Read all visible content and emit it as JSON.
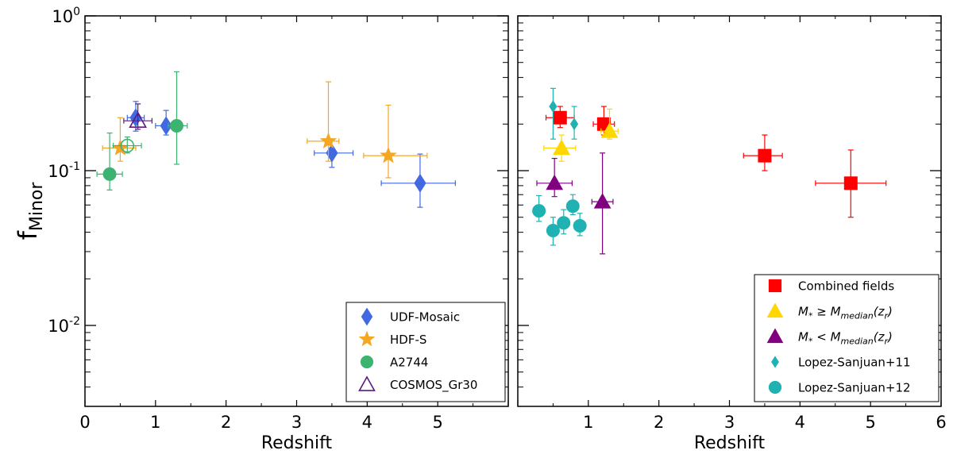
{
  "chart_data": [
    {
      "type": "scatter",
      "panel": "left",
      "xlabel": "Redshift",
      "ylabel_main": "f",
      "ylabel_sub": "Minor",
      "yscale": "log",
      "xlim": [
        0,
        6
      ],
      "ylim": [
        0.003,
        1
      ],
      "x_ticks": [
        0,
        1,
        2,
        3,
        4,
        5
      ],
      "x_tick_labels": [
        "0",
        "1",
        "2",
        "3",
        "4",
        "5"
      ],
      "y_tick_labels": [
        {
          "value": 1,
          "base": "10",
          "exp": "0"
        },
        {
          "value": 0.1,
          "base": "10",
          "exp": "-1"
        },
        {
          "value": 0.01,
          "base": "10",
          "exp": "-2"
        }
      ],
      "legend_position": "bottom-right",
      "series": [
        {
          "name": "UDF-Mosaic",
          "marker": "diamond",
          "color": "#4169E1",
          "filled": true,
          "points": [
            {
              "x": 0.72,
              "y": 0.22,
              "xerr": [
                0.12,
                0.12
              ],
              "yerr": [
                0.04,
                0.06
              ]
            },
            {
              "x": 1.15,
              "y": 0.195,
              "xerr": [
                0.15,
                0.15
              ],
              "yerr": [
                0.025,
                0.05
              ]
            },
            {
              "x": 3.5,
              "y": 0.13,
              "xerr": [
                0.25,
                0.3
              ],
              "yerr": [
                0.025,
                0.03
              ]
            },
            {
              "x": 4.75,
              "y": 0.083,
              "xerr": [
                0.55,
                0.5
              ],
              "yerr": [
                0.025,
                0.045
              ]
            }
          ]
        },
        {
          "name": "HDF-S",
          "marker": "star",
          "color": "#F5A623",
          "filled": true,
          "points": [
            {
              "x": 0.5,
              "y": 0.14,
              "xerr": [
                0.25,
                0.22
              ],
              "yerr": [
                0.025,
                0.08
              ]
            },
            {
              "x": 3.45,
              "y": 0.155,
              "xerr": [
                0.3,
                0.15
              ],
              "yerr": [
                0.04,
                0.22
              ]
            },
            {
              "x": 4.3,
              "y": 0.125,
              "xerr": [
                0.35,
                0.55
              ],
              "yerr": [
                0.035,
                0.14
              ]
            }
          ]
        },
        {
          "name": "A2744",
          "marker": "circle",
          "color": "#3CB371",
          "filled": true,
          "points": [
            {
              "x": 0.35,
              "y": 0.095,
              "xerr": [
                0.18,
                0.18
              ],
              "yerr": [
                0.02,
                0.08
              ]
            },
            {
              "x": 1.3,
              "y": 0.195,
              "xerr": [
                0.12,
                0.15
              ],
              "yerr": [
                0.085,
                0.24
              ]
            }
          ]
        },
        {
          "name": "A2744 (open)",
          "marker": "circle",
          "color": "#3CB371",
          "filled": false,
          "in_legend": false,
          "points": [
            {
              "x": 0.6,
              "y": 0.145,
              "xerr": [
                0.2,
                0.2
              ],
              "yerr": [
                0.015,
                0.02
              ]
            }
          ]
        },
        {
          "name": "COSMOS_Gr30",
          "marker": "triangle",
          "color": "#5B1A80",
          "filled": false,
          "points": [
            {
              "x": 0.75,
              "y": 0.21,
              "xerr": [
                0.2,
                0.2
              ],
              "yerr": [
                0.025,
                0.06
              ]
            }
          ]
        }
      ]
    },
    {
      "type": "scatter",
      "panel": "right",
      "xlabel": "Redshift",
      "yscale": "log",
      "xlim": [
        0,
        6
      ],
      "ylim": [
        0.003,
        1
      ],
      "x_ticks": [
        1,
        2,
        3,
        4,
        5,
        6
      ],
      "x_tick_labels": [
        "1",
        "2",
        "3",
        "4",
        "5",
        "6"
      ],
      "legend_position": "bottom-right",
      "series": [
        {
          "name": "Combined fields",
          "marker": "square",
          "color": "#FF0000",
          "filled": true,
          "points": [
            {
              "x": 0.6,
              "y": 0.22,
              "xerr": [
                0.2,
                0.2
              ],
              "yerr": [
                0.03,
                0.04
              ]
            },
            {
              "x": 1.22,
              "y": 0.2,
              "xerr": [
                0.15,
                0.15
              ],
              "yerr": [
                0.03,
                0.06
              ]
            },
            {
              "x": 3.5,
              "y": 0.125,
              "xerr": [
                0.3,
                0.25
              ],
              "yerr": [
                0.025,
                0.045
              ]
            },
            {
              "x": 4.72,
              "y": 0.083,
              "xerr": [
                0.5,
                0.5
              ],
              "yerr": [
                0.033,
                0.053
              ]
            }
          ]
        },
        {
          "name": "M* ≥ M_median(z_r)",
          "marker": "triangle",
          "color": "#FFD700",
          "filled": true,
          "points": [
            {
              "x": 0.62,
              "y": 0.14,
              "xerr": [
                0.25,
                0.2
              ],
              "yerr": [
                0.025,
                0.03
              ]
            },
            {
              "x": 1.3,
              "y": 0.18,
              "xerr": [
                0.12,
                0.12
              ],
              "yerr": [
                0.02,
                0.07
              ]
            }
          ]
        },
        {
          "name": "M* < M_median(z_r)",
          "marker": "triangle",
          "color": "#800080",
          "filled": true,
          "points": [
            {
              "x": 0.52,
              "y": 0.083,
              "xerr": [
                0.25,
                0.25
              ],
              "yerr": [
                0.015,
                0.037
              ]
            },
            {
              "x": 1.2,
              "y": 0.063,
              "xerr": [
                0.15,
                0.15
              ],
              "yerr": [
                0.034,
                0.067
              ]
            }
          ]
        },
        {
          "name": "Lopez-Sanjuan+11",
          "marker": "thin-diamond",
          "color": "#20B2B2",
          "filled": true,
          "points": [
            {
              "x": 0.5,
              "y": 0.26,
              "xerr": [
                0.0,
                0.0
              ],
              "yerr": [
                0.1,
                0.08
              ]
            },
            {
              "x": 0.8,
              "y": 0.2,
              "xerr": [
                0.0,
                0.0
              ],
              "yerr": [
                0.04,
                0.06
              ]
            }
          ]
        },
        {
          "name": "Lopez-Sanjuan+12",
          "marker": "circle",
          "color": "#20B2B2",
          "filled": true,
          "points": [
            {
              "x": 0.3,
              "y": 0.055,
              "xerr": [
                0.0,
                0.0
              ],
              "yerr": [
                0.008,
                0.014
              ]
            },
            {
              "x": 0.5,
              "y": 0.041,
              "xerr": [
                0.0,
                0.0
              ],
              "yerr": [
                0.008,
                0.009
              ]
            },
            {
              "x": 0.65,
              "y": 0.046,
              "xerr": [
                0.0,
                0.0
              ],
              "yerr": [
                0.007,
                0.01
              ]
            },
            {
              "x": 0.78,
              "y": 0.059,
              "xerr": [
                0.0,
                0.0
              ],
              "yerr": [
                0.007,
                0.011
              ]
            },
            {
              "x": 0.88,
              "y": 0.044,
              "xerr": [
                0.0,
                0.0
              ],
              "yerr": [
                0.006,
                0.009
              ]
            }
          ]
        }
      ]
    }
  ]
}
